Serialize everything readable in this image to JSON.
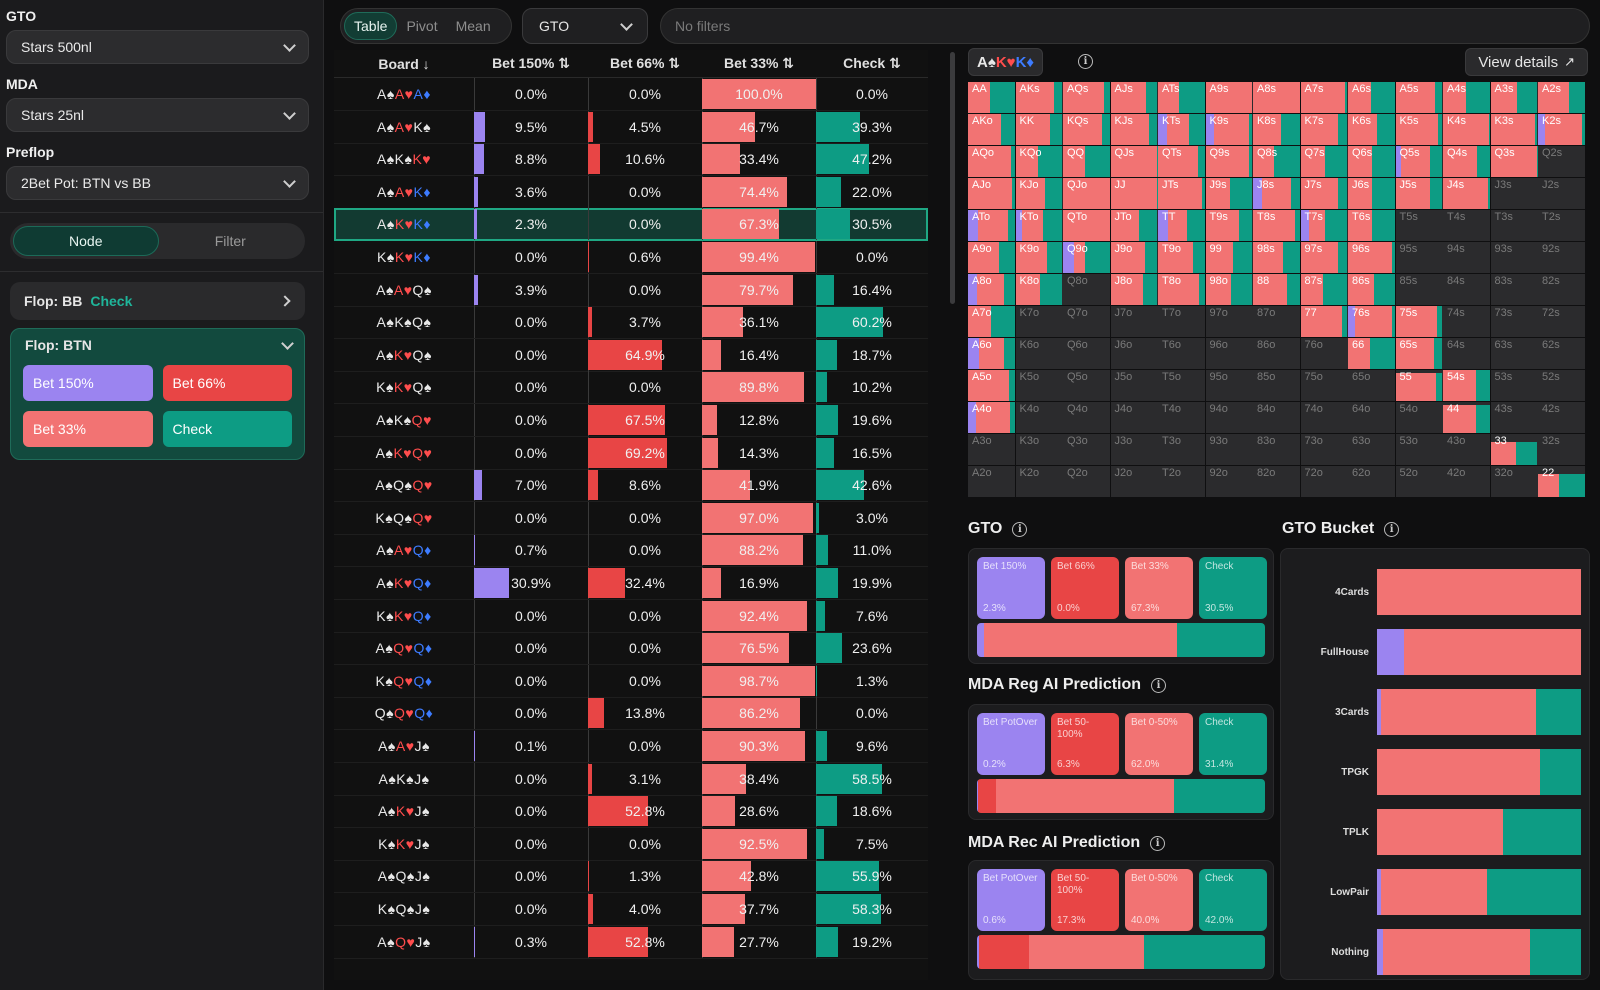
{
  "colors": {
    "purple": "#9b84f0",
    "red": "#e84545",
    "salmon": "#f27373",
    "teal": "#0d9c84",
    "dark": "#141414"
  },
  "sidebar": {
    "gto_label": "GTO",
    "gto_value": "Stars 500nl",
    "mda_label": "MDA",
    "mda_value": "Stars 25nl",
    "preflop_label": "Preflop",
    "preflop_value": "2Bet Pot: BTN vs BB",
    "toggle": {
      "node": "Node",
      "filter": "Filter"
    },
    "flop_bb": {
      "label": "Flop: BB",
      "action": "Check"
    },
    "flop_btn": {
      "label": "Flop: BTN",
      "actions": [
        "Bet 150%",
        "Bet 66%",
        "Bet 33%",
        "Check"
      ]
    }
  },
  "topbar": {
    "tabs": [
      "Table",
      "Pivot",
      "Mean"
    ],
    "select": "GTO",
    "filters_placeholder": "No filters"
  },
  "table": {
    "headers": [
      "Board ↓",
      "Bet 150% ⇅",
      "Bet 66% ⇅",
      "Bet 33% ⇅",
      "Check ⇅"
    ],
    "rows": [
      {
        "board": [
          [
            "A",
            "s"
          ],
          [
            "A",
            "h"
          ],
          [
            "A",
            "d"
          ]
        ],
        "v": [
          0.0,
          0.0,
          100.0,
          0.0
        ]
      },
      {
        "board": [
          [
            "A",
            "s"
          ],
          [
            "A",
            "h"
          ],
          [
            "K",
            "s"
          ]
        ],
        "v": [
          9.5,
          4.5,
          46.7,
          39.3
        ]
      },
      {
        "board": [
          [
            "A",
            "s"
          ],
          [
            "K",
            "s"
          ],
          [
            "K",
            "h"
          ]
        ],
        "v": [
          8.8,
          10.6,
          33.4,
          47.2
        ]
      },
      {
        "board": [
          [
            "A",
            "s"
          ],
          [
            "A",
            "h"
          ],
          [
            "K",
            "d"
          ]
        ],
        "v": [
          3.6,
          0.0,
          74.4,
          22.0
        ]
      },
      {
        "board": [
          [
            "A",
            "s"
          ],
          [
            "K",
            "h"
          ],
          [
            "K",
            "d"
          ]
        ],
        "v": [
          2.3,
          0.0,
          67.3,
          30.5
        ],
        "selected": true
      },
      {
        "board": [
          [
            "K",
            "s"
          ],
          [
            "K",
            "h"
          ],
          [
            "K",
            "d"
          ]
        ],
        "v": [
          0.0,
          0.6,
          99.4,
          0.0
        ]
      },
      {
        "board": [
          [
            "A",
            "s"
          ],
          [
            "A",
            "h"
          ],
          [
            "Q",
            "s"
          ]
        ],
        "v": [
          3.9,
          0.0,
          79.7,
          16.4
        ]
      },
      {
        "board": [
          [
            "A",
            "s"
          ],
          [
            "K",
            "s"
          ],
          [
            "Q",
            "s"
          ]
        ],
        "v": [
          0.0,
          3.7,
          36.1,
          60.2
        ]
      },
      {
        "board": [
          [
            "A",
            "s"
          ],
          [
            "K",
            "h"
          ],
          [
            "Q",
            "s"
          ]
        ],
        "v": [
          0.0,
          64.9,
          16.4,
          18.7
        ]
      },
      {
        "board": [
          [
            "K",
            "s"
          ],
          [
            "K",
            "h"
          ],
          [
            "Q",
            "s"
          ]
        ],
        "v": [
          0.0,
          0.0,
          89.8,
          10.2
        ]
      },
      {
        "board": [
          [
            "A",
            "s"
          ],
          [
            "K",
            "s"
          ],
          [
            "Q",
            "h"
          ]
        ],
        "v": [
          0.0,
          67.5,
          12.8,
          19.6
        ]
      },
      {
        "board": [
          [
            "A",
            "s"
          ],
          [
            "K",
            "h"
          ],
          [
            "Q",
            "h"
          ]
        ],
        "v": [
          0.0,
          69.2,
          14.3,
          16.5
        ]
      },
      {
        "board": [
          [
            "A",
            "s"
          ],
          [
            "Q",
            "s"
          ],
          [
            "Q",
            "h"
          ]
        ],
        "v": [
          7.0,
          8.6,
          41.9,
          42.6
        ]
      },
      {
        "board": [
          [
            "K",
            "s"
          ],
          [
            "Q",
            "s"
          ],
          [
            "Q",
            "h"
          ]
        ],
        "v": [
          0.0,
          0.0,
          97.0,
          3.0
        ]
      },
      {
        "board": [
          [
            "A",
            "s"
          ],
          [
            "A",
            "h"
          ],
          [
            "Q",
            "d"
          ]
        ],
        "v": [
          0.7,
          0.0,
          88.2,
          11.0
        ]
      },
      {
        "board": [
          [
            "A",
            "s"
          ],
          [
            "K",
            "h"
          ],
          [
            "Q",
            "d"
          ]
        ],
        "v": [
          30.9,
          32.4,
          16.9,
          19.9
        ]
      },
      {
        "board": [
          [
            "K",
            "s"
          ],
          [
            "K",
            "h"
          ],
          [
            "Q",
            "d"
          ]
        ],
        "v": [
          0.0,
          0.0,
          92.4,
          7.6
        ]
      },
      {
        "board": [
          [
            "A",
            "s"
          ],
          [
            "Q",
            "h"
          ],
          [
            "Q",
            "d"
          ]
        ],
        "v": [
          0.0,
          0.0,
          76.5,
          23.6
        ]
      },
      {
        "board": [
          [
            "K",
            "s"
          ],
          [
            "Q",
            "h"
          ],
          [
            "Q",
            "d"
          ]
        ],
        "v": [
          0.0,
          0.0,
          98.7,
          1.3
        ]
      },
      {
        "board": [
          [
            "Q",
            "s"
          ],
          [
            "Q",
            "h"
          ],
          [
            "Q",
            "d"
          ]
        ],
        "v": [
          0.0,
          13.8,
          86.2,
          0.0
        ]
      },
      {
        "board": [
          [
            "A",
            "s"
          ],
          [
            "A",
            "h"
          ],
          [
            "J",
            "s"
          ]
        ],
        "v": [
          0.1,
          0.0,
          90.3,
          9.6
        ]
      },
      {
        "board": [
          [
            "A",
            "s"
          ],
          [
            "K",
            "s"
          ],
          [
            "J",
            "s"
          ]
        ],
        "v": [
          0.0,
          3.1,
          38.4,
          58.5
        ]
      },
      {
        "board": [
          [
            "A",
            "s"
          ],
          [
            "K",
            "h"
          ],
          [
            "J",
            "s"
          ]
        ],
        "v": [
          0.0,
          52.8,
          28.6,
          18.6
        ]
      },
      {
        "board": [
          [
            "K",
            "s"
          ],
          [
            "K",
            "h"
          ],
          [
            "J",
            "s"
          ]
        ],
        "v": [
          0.0,
          0.0,
          92.5,
          7.5
        ]
      },
      {
        "board": [
          [
            "A",
            "s"
          ],
          [
            "Q",
            "s"
          ],
          [
            "J",
            "s"
          ]
        ],
        "v": [
          0.0,
          1.3,
          42.8,
          55.9
        ]
      },
      {
        "board": [
          [
            "K",
            "s"
          ],
          [
            "Q",
            "s"
          ],
          [
            "J",
            "s"
          ]
        ],
        "v": [
          0.0,
          4.0,
          37.7,
          58.3
        ]
      },
      {
        "board": [
          [
            "A",
            "s"
          ],
          [
            "Q",
            "h"
          ],
          [
            "J",
            "s"
          ]
        ],
        "v": [
          0.3,
          52.8,
          27.7,
          19.2
        ]
      }
    ]
  },
  "matrix": {
    "board_chip": [
      [
        "A",
        "s"
      ],
      [
        "K",
        "h"
      ],
      [
        "K",
        "d"
      ]
    ],
    "view_details": "View details",
    "hands": [
      [
        "AA",
        "AKs",
        "AQs",
        "AJs",
        "ATs",
        "A9s",
        "A8s",
        "A7s",
        "A6s",
        "A5s",
        "A4s",
        "A3s",
        "A2s"
      ],
      [
        "AKo",
        "KK",
        "KQs",
        "KJs",
        "KTs",
        "K9s",
        "K8s",
        "K7s",
        "K6s",
        "K5s",
        "K4s",
        "K3s",
        "K2s"
      ],
      [
        "AQo",
        "KQo",
        "QQ",
        "QJs",
        "QTs",
        "Q9s",
        "Q8s",
        "Q7s",
        "Q6s",
        "Q5s",
        "Q4s",
        "Q3s",
        "Q2s"
      ],
      [
        "AJo",
        "KJo",
        "QJo",
        "JJ",
        "JTs",
        "J9s",
        "J8s",
        "J7s",
        "J6s",
        "J5s",
        "J4s",
        "J3s",
        "J2s"
      ],
      [
        "ATo",
        "KTo",
        "QTo",
        "JTo",
        "TT",
        "T9s",
        "T8s",
        "T7s",
        "T6s",
        "T5s",
        "T4s",
        "T3s",
        "T2s"
      ],
      [
        "A9o",
        "K9o",
        "Q9o",
        "J9o",
        "T9o",
        "99",
        "98s",
        "97s",
        "96s",
        "95s",
        "94s",
        "93s",
        "92s"
      ],
      [
        "A8o",
        "K8o",
        "Q8o",
        "J8o",
        "T8o",
        "98o",
        "88",
        "87s",
        "86s",
        "85s",
        "84s",
        "83s",
        "82s"
      ],
      [
        "A7o",
        "K7o",
        "Q7o",
        "J7o",
        "T7o",
        "97o",
        "87o",
        "77",
        "76s",
        "75s",
        "74s",
        "73s",
        "72s"
      ],
      [
        "A6o",
        "K6o",
        "Q6o",
        "J6o",
        "T6o",
        "96o",
        "86o",
        "76o",
        "66",
        "65s",
        "64s",
        "63s",
        "62s"
      ],
      [
        "A5o",
        "K5o",
        "Q5o",
        "J5o",
        "T5o",
        "95o",
        "85o",
        "75o",
        "65o",
        "55",
        "54s",
        "53s",
        "52s"
      ],
      [
        "A4o",
        "K4o",
        "Q4o",
        "J4o",
        "T4o",
        "94o",
        "84o",
        "74o",
        "64o",
        "54o",
        "44",
        "43s",
        "42s"
      ],
      [
        "A3o",
        "K3o",
        "Q3o",
        "J3o",
        "T3o",
        "93o",
        "83o",
        "73o",
        "63o",
        "53o",
        "43o",
        "33",
        "32s"
      ],
      [
        "A2o",
        "K2o",
        "Q2o",
        "J2o",
        "T2o",
        "92o",
        "82o",
        "72o",
        "62o",
        "52o",
        "42o",
        "32o",
        "22"
      ]
    ]
  },
  "gto_panel": {
    "title": "GTO",
    "boxes": [
      {
        "label": "Bet 150%",
        "value": "2.3%"
      },
      {
        "label": "Bet 66%",
        "value": "0.0%"
      },
      {
        "label": "Bet 33%",
        "value": "67.3%"
      },
      {
        "label": "Check",
        "value": "30.5%"
      }
    ],
    "split": [
      2.3,
      0.0,
      67.3,
      30.5
    ]
  },
  "reg_panel": {
    "title": "MDA Reg AI Prediction",
    "boxes": [
      {
        "label": "Bet PotOver",
        "value": "0.2%"
      },
      {
        "label": "Bet 50-100%",
        "value": "6.3%"
      },
      {
        "label": "Bet 0-50%",
        "value": "62.0%"
      },
      {
        "label": "Check",
        "value": "31.4%"
      }
    ],
    "split": [
      0.2,
      6.3,
      62.0,
      31.4
    ]
  },
  "rec_panel": {
    "title": "MDA Rec AI Prediction",
    "boxes": [
      {
        "label": "Bet PotOver",
        "value": "0.6%"
      },
      {
        "label": "Bet 50-100%",
        "value": "17.3%"
      },
      {
        "label": "Bet 0-50%",
        "value": "40.0%"
      },
      {
        "label": "Check",
        "value": "42.0%"
      }
    ],
    "split": [
      0.6,
      17.3,
      40.0,
      42.0
    ]
  },
  "bucket": {
    "title": "GTO Bucket",
    "rows": [
      {
        "label": "4Cards",
        "split": [
          0,
          0,
          100,
          0
        ]
      },
      {
        "label": "FullHouse",
        "split": [
          13,
          0,
          87,
          0
        ]
      },
      {
        "label": "3Cards",
        "split": [
          2,
          0,
          76,
          22
        ]
      },
      {
        "label": "TPGK",
        "split": [
          0,
          0,
          80,
          20
        ]
      },
      {
        "label": "TPLK",
        "split": [
          0,
          0,
          62,
          38
        ]
      },
      {
        "label": "LowPair",
        "split": [
          2,
          0,
          52,
          46
        ]
      },
      {
        "label": "Nothing",
        "split": [
          3,
          0,
          72,
          25
        ]
      }
    ]
  }
}
